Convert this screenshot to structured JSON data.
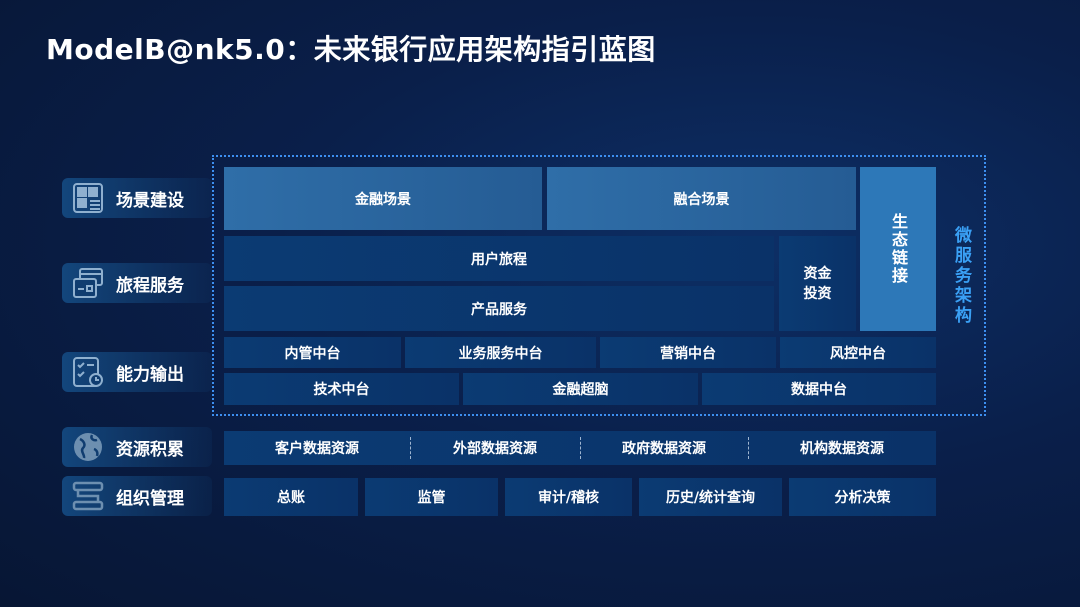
{
  "title": "ModelB@nk5.0：未来银行应用架构指引蓝图",
  "layers": [
    {
      "label": "场景建设",
      "icon": "dashboard-icon"
    },
    {
      "label": "旅程服务",
      "icon": "cards-icon"
    },
    {
      "label": "能力输出",
      "icon": "checklist-clock-icon"
    },
    {
      "label": "资源积累",
      "icon": "globe-icon"
    },
    {
      "label": "组织管理",
      "icon": "org-flow-icon"
    }
  ],
  "scenes": [
    "金融场景",
    "融合场景"
  ],
  "ecosystem": "生态链接",
  "microservice": "微服务架构",
  "journey": {
    "user_journey": "用户旅程",
    "product_service": "产品服务",
    "fund_invest": "资金投资"
  },
  "platforms_row1": [
    "内管中台",
    "业务服务中台",
    "营销中台",
    "风控中台"
  ],
  "platforms_row2": [
    "技术中台",
    "金融超脑",
    "数据中台"
  ],
  "resources": [
    "客户数据资源",
    "外部数据资源",
    "政府数据资源",
    "机构数据资源"
  ],
  "org": [
    "总账",
    "监管",
    "审计/稽核",
    "历史/统计查询",
    "分析决策"
  ],
  "colors": {
    "accent": "#3aa0f5",
    "cell": "#0b3b73",
    "highlight": "#2f6ea8",
    "background": "#0a1f4a"
  }
}
